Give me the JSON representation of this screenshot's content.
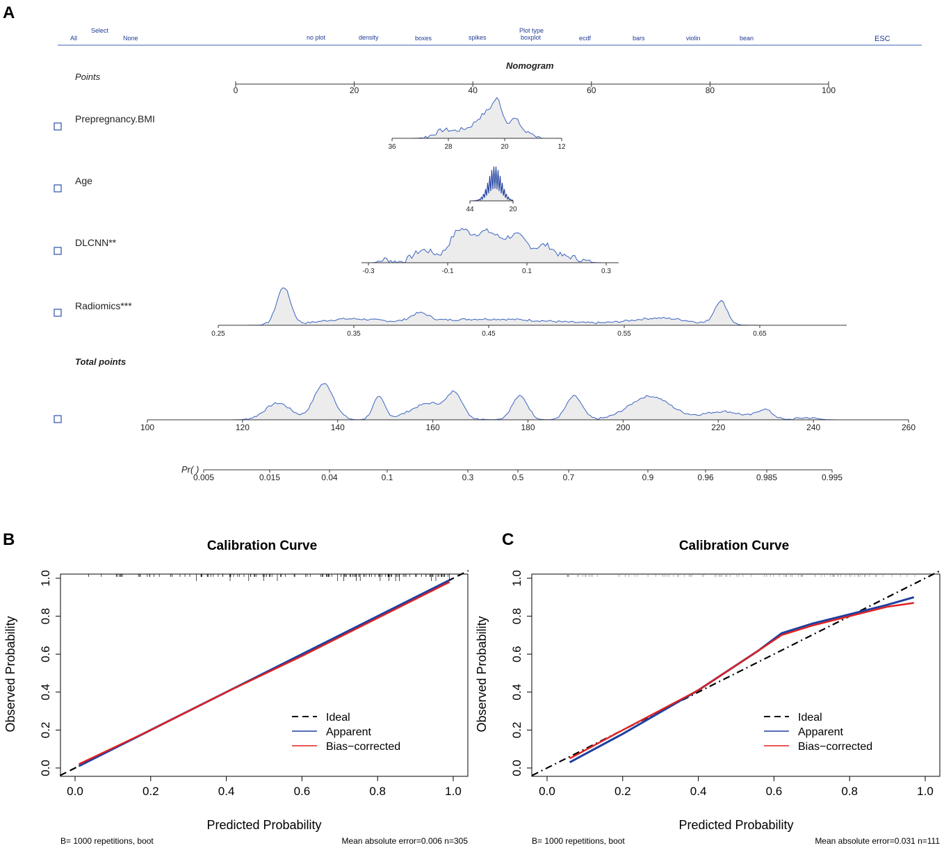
{
  "panel_letters": {
    "a": "A",
    "b": "B",
    "c": "C"
  },
  "menu": {
    "all": "All",
    "select": "Select",
    "none": "None",
    "no_plot": "no plot",
    "density": "density",
    "boxes": "boxes",
    "spikes": "spikes",
    "plot_type": "Plot type",
    "boxplot": "boxplot",
    "ecdf": "ecdf",
    "bars": "bars",
    "violin": "violin",
    "bean": "bean",
    "esc": "ESC"
  },
  "colors": {
    "blue": "#1f3f9f",
    "red": "#e02020",
    "density_fill": "#ececec",
    "density_line": "#3a63c0",
    "menu": "#1f3a93"
  },
  "chart_data": [
    {
      "type": "nomogram",
      "title": "Nomogram",
      "points_label": "Points",
      "total_points_label": "Total points",
      "pr_label": "Pr( )",
      "points_axis": {
        "range": [
          0,
          100
        ],
        "ticks": [
          0,
          20,
          40,
          60,
          80,
          100
        ]
      },
      "variables": [
        {
          "name": "Prepregnancy.BMI",
          "ticks": [
            36,
            28,
            20,
            12
          ],
          "tick_labels": [
            "36",
            "28",
            "20",
            "12"
          ]
        },
        {
          "name": "Age",
          "ticks": [
            44,
            20
          ],
          "tick_labels": [
            "44",
            "20"
          ]
        },
        {
          "name": "DLCNN**",
          "ticks": [
            -0.3,
            -0.1,
            0.1,
            0.3
          ],
          "tick_labels": [
            "-0.3",
            "-0.1",
            "0.1",
            "0.3"
          ]
        },
        {
          "name": "Radiomics***",
          "ticks": [
            0.25,
            0.35,
            0.45,
            0.55,
            0.65
          ],
          "tick_labels": [
            "0.25",
            "0.35",
            "0.45",
            "0.55",
            "0.65"
          ]
        }
      ],
      "total_points_axis": {
        "range": [
          100,
          260
        ],
        "ticks": [
          100,
          120,
          140,
          160,
          180,
          200,
          220,
          240,
          260
        ]
      },
      "probability_axis": {
        "ticks": [
          0.005,
          0.015,
          0.04,
          0.1,
          0.3,
          0.5,
          0.7,
          0.9,
          0.96,
          0.985,
          0.995
        ],
        "tick_labels": [
          "0.005",
          "0.015",
          "0.04",
          "0.1",
          "0.3",
          "0.5",
          "0.7",
          "0.9",
          "0.96",
          "0.985",
          "0.995"
        ]
      }
    },
    {
      "type": "line",
      "title": "Calibration Curve",
      "xlabel": "Predicted Probability",
      "ylabel": "Observed Probability",
      "xlim": [
        0,
        1
      ],
      "ylim": [
        0,
        1
      ],
      "xticks": [
        "0.0",
        "0.2",
        "0.4",
        "0.6",
        "0.8",
        "1.0"
      ],
      "yticks": [
        "0.0",
        "0.2",
        "0.4",
        "0.6",
        "0.8",
        "1.0"
      ],
      "legend": [
        "Ideal",
        "Apparent",
        "Bias−corrected"
      ],
      "footer_left": "B= 1000 repetitions, boot",
      "footer_right": "Mean absolute error=0.006 n=305",
      "series": [
        {
          "name": "Ideal",
          "x": [
            0,
            1
          ],
          "y": [
            0,
            1
          ]
        },
        {
          "name": "Apparent",
          "x": [
            0.01,
            0.2,
            0.4,
            0.6,
            0.8,
            0.99
          ],
          "y": [
            0.01,
            0.2,
            0.4,
            0.6,
            0.8,
            0.99
          ]
        },
        {
          "name": "Bias−corrected",
          "x": [
            0.01,
            0.2,
            0.4,
            0.6,
            0.8,
            0.99
          ],
          "y": [
            0.02,
            0.2,
            0.4,
            0.59,
            0.79,
            0.98
          ]
        }
      ]
    },
    {
      "type": "line",
      "title": "Calibration Curve",
      "xlabel": "Predicted Probability",
      "ylabel": "Observed Probability",
      "xlim": [
        0,
        1
      ],
      "ylim": [
        0,
        1
      ],
      "xticks": [
        "0.0",
        "0.2",
        "0.4",
        "0.6",
        "0.8",
        "1.0"
      ],
      "yticks": [
        "0.0",
        "0.2",
        "0.4",
        "0.6",
        "0.8",
        "1.0"
      ],
      "legend": [
        "Ideal",
        "Apparent",
        "Bias−corrected"
      ],
      "footer_left": "B= 1000 repetitions, boot",
      "footer_right": "Mean absolute error=0.031 n=111",
      "series": [
        {
          "name": "Ideal",
          "x": [
            0,
            1
          ],
          "y": [
            0,
            1
          ]
        },
        {
          "name": "Apparent",
          "x": [
            0.06,
            0.2,
            0.4,
            0.56,
            0.62,
            0.7,
            0.8,
            0.9,
            0.97
          ],
          "y": [
            0.03,
            0.18,
            0.41,
            0.62,
            0.71,
            0.76,
            0.81,
            0.86,
            0.9
          ]
        },
        {
          "name": "Bias−corrected",
          "x": [
            0.06,
            0.2,
            0.4,
            0.56,
            0.62,
            0.7,
            0.8,
            0.9,
            0.97
          ],
          "y": [
            0.05,
            0.2,
            0.41,
            0.62,
            0.7,
            0.75,
            0.8,
            0.85,
            0.87
          ]
        }
      ]
    }
  ]
}
